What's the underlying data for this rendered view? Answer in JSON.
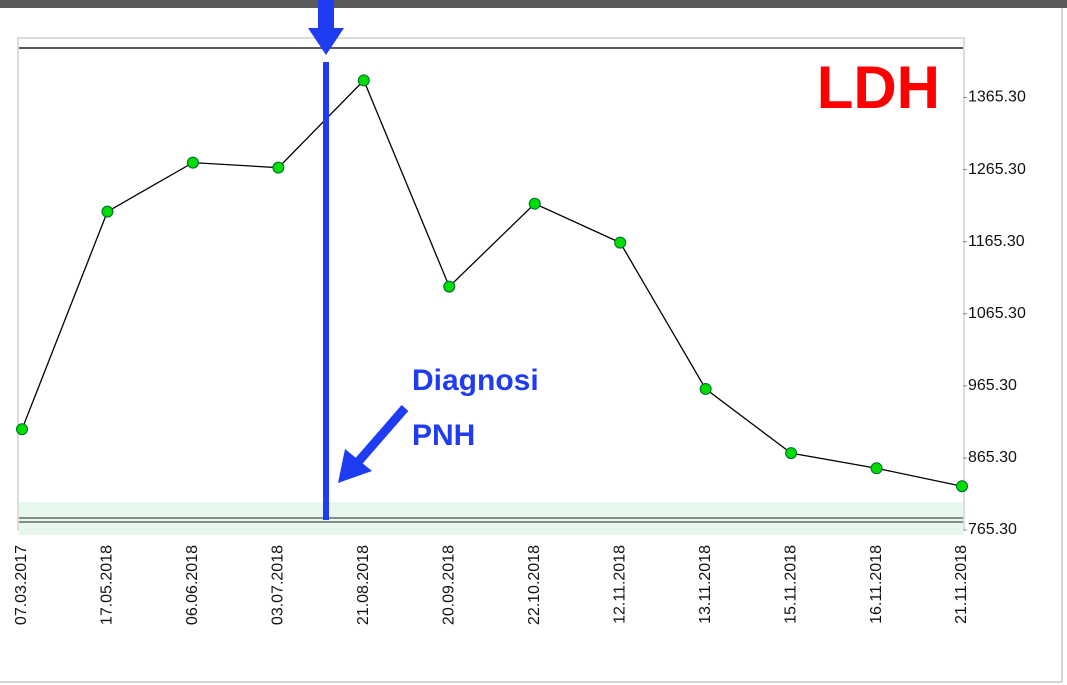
{
  "chart_data": {
    "type": "line",
    "title": "LDH",
    "annotations": [
      "Diagnosi",
      "PNH"
    ],
    "categories": [
      "07.03.2017",
      "17.05.2018",
      "06.06.2018",
      "03.07.2018",
      "21.08.2018",
      "20.09.2018",
      "22.10.2018",
      "12.11.2018",
      "13.11.2018",
      "15.11.2018",
      "16.11.2018",
      "21.11.2018"
    ],
    "series": [
      {
        "color": "#000000",
        "marker_color": "#00dd00",
        "values": [
          905,
          1207,
          1275,
          1268,
          1389,
          1103,
          1218,
          1164,
          961,
          872,
          851,
          826
        ]
      }
    ],
    "ylim": [
      765.3,
      1434
    ],
    "yticks": [
      {
        "value": 765.3,
        "label": "765.30"
      },
      {
        "value": 865.3,
        "label": "865.30"
      },
      {
        "value": 965.3,
        "label": "965.30"
      },
      {
        "value": 1065.3,
        "label": "1065.30"
      },
      {
        "value": 1165.3,
        "label": "1165.30"
      },
      {
        "value": 1265.3,
        "label": "1265.30"
      },
      {
        "value": 1365.3,
        "label": "1365.30"
      }
    ]
  }
}
